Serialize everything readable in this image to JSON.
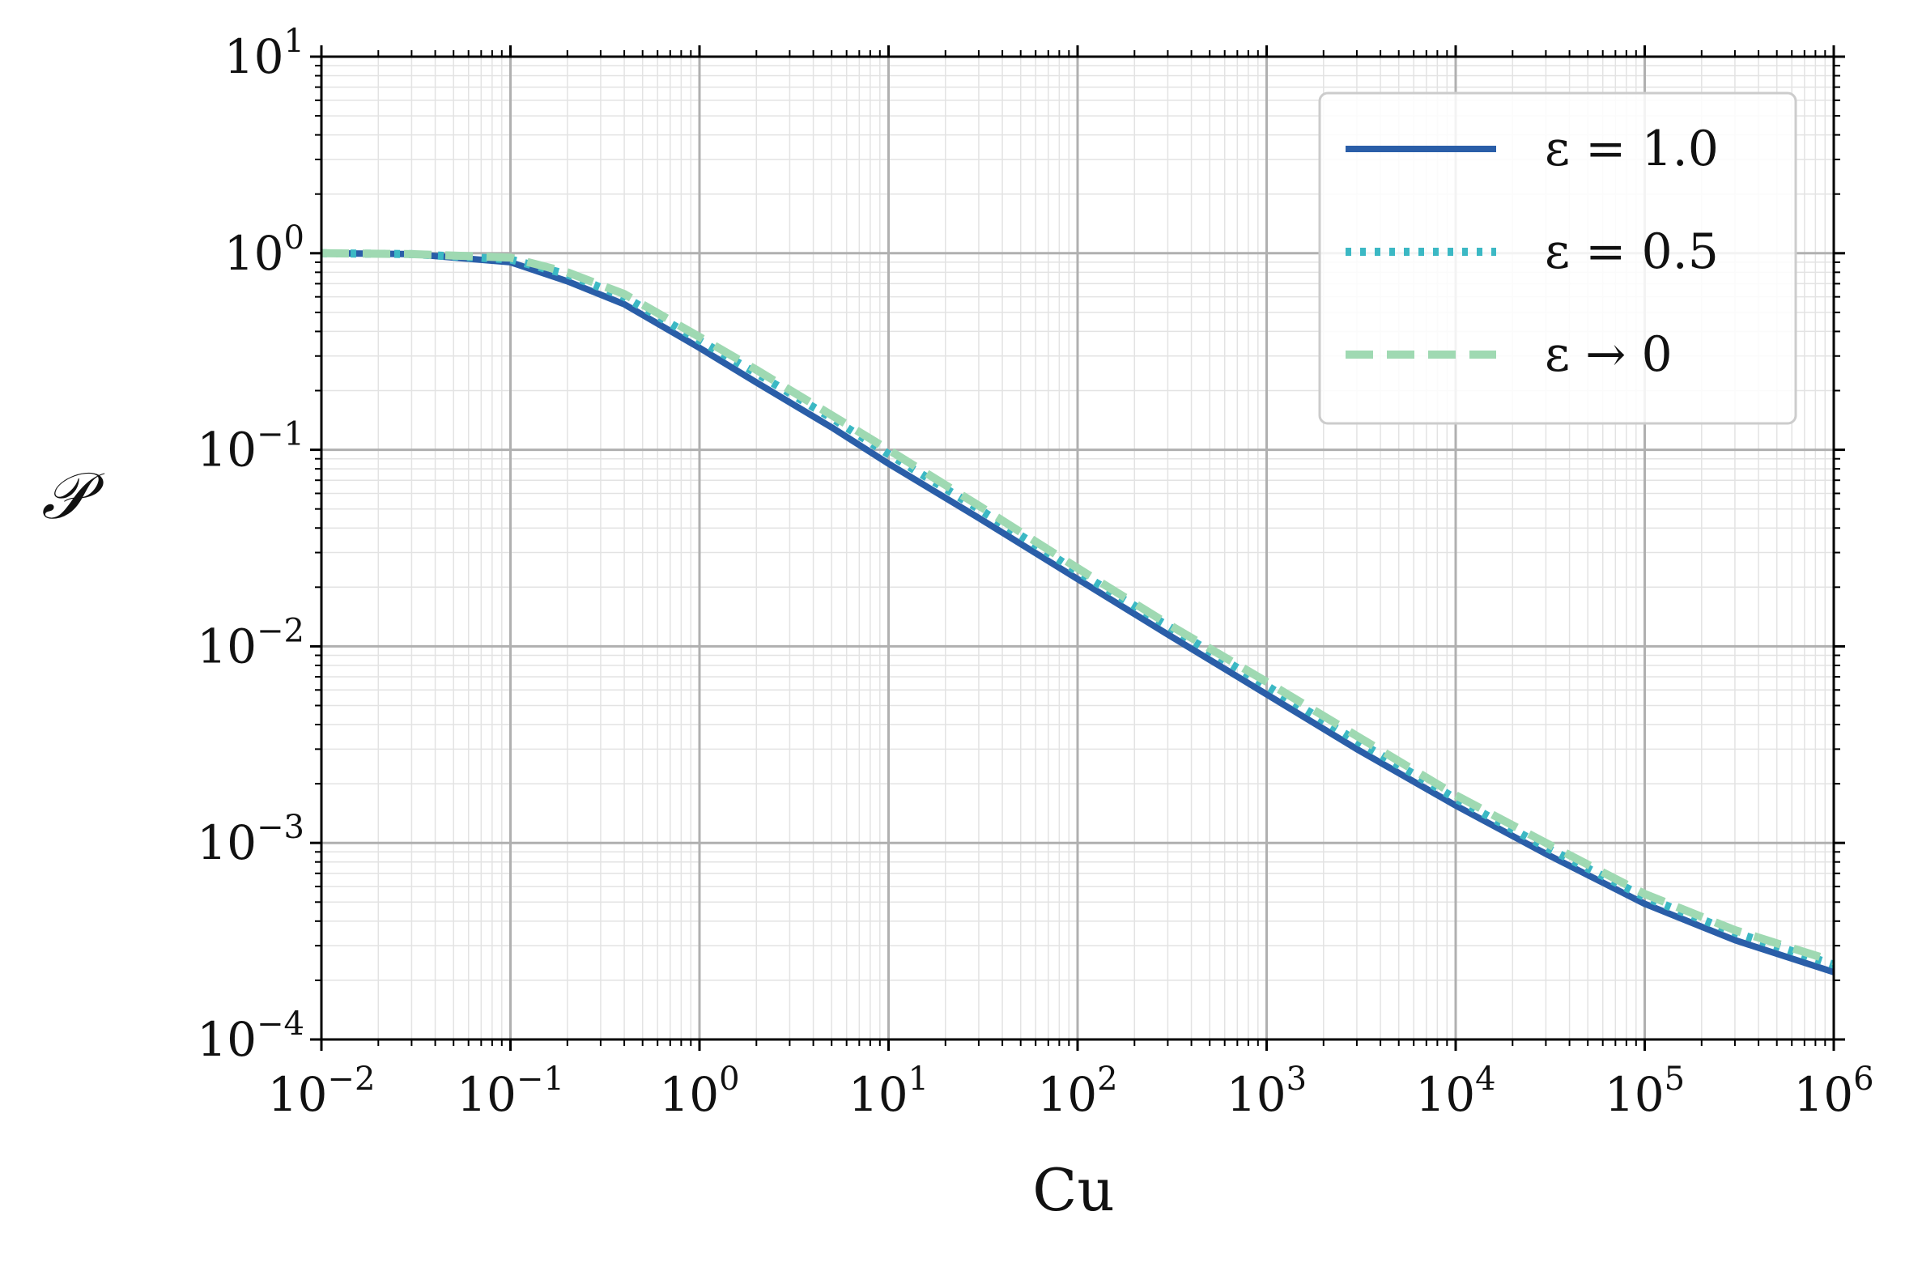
{
  "chart_data": {
    "type": "line",
    "xscale": "log",
    "yscale": "log",
    "xlim": [
      0.01,
      1000000
    ],
    "ylim": [
      0.0001,
      10
    ],
    "xlabel": "Cu",
    "ylabel": "𝒫",
    "grid": true,
    "minor_grid": true,
    "legend_position": "top-right",
    "x_ticks": [
      {
        "base": "10",
        "exp": "−2"
      },
      {
        "base": "10",
        "exp": "−1"
      },
      {
        "base": "10",
        "exp": "0"
      },
      {
        "base": "10",
        "exp": "1"
      },
      {
        "base": "10",
        "exp": "2"
      },
      {
        "base": "10",
        "exp": "3"
      },
      {
        "base": "10",
        "exp": "4"
      },
      {
        "base": "10",
        "exp": "5"
      },
      {
        "base": "10",
        "exp": "6"
      }
    ],
    "y_ticks": [
      {
        "base": "10",
        "exp": "−4"
      },
      {
        "base": "10",
        "exp": "−3"
      },
      {
        "base": "10",
        "exp": "−2"
      },
      {
        "base": "10",
        "exp": "−1"
      },
      {
        "base": "10",
        "exp": "0"
      },
      {
        "base": "10",
        "exp": "1"
      }
    ],
    "series": [
      {
        "name": "ε = 1.0",
        "color": "#2a5ea8",
        "style": "solid",
        "x": [
          0.01,
          0.03,
          0.1,
          0.2,
          0.4,
          1,
          2,
          5,
          10,
          30,
          100,
          300,
          1000,
          3000,
          10000,
          30000,
          100000,
          300000,
          1000000
        ],
        "y": [
          1.0,
          0.99,
          0.9,
          0.72,
          0.55,
          0.33,
          0.22,
          0.13,
          0.085,
          0.045,
          0.022,
          0.0115,
          0.0057,
          0.003,
          0.00155,
          0.00088,
          0.00049,
          0.00032,
          0.00022
        ]
      },
      {
        "name": "ε = 0.5",
        "color": "#3bb8c4",
        "style": "dotted",
        "x": [
          0.01,
          0.03,
          0.1,
          0.2,
          0.4,
          1,
          2,
          5,
          10,
          30,
          100,
          300,
          1000,
          3000,
          10000,
          30000,
          100000,
          300000,
          1000000
        ],
        "y": [
          1.0,
          0.99,
          0.93,
          0.78,
          0.6,
          0.36,
          0.245,
          0.145,
          0.095,
          0.05,
          0.024,
          0.0127,
          0.0063,
          0.0033,
          0.00168,
          0.00095,
          0.00053,
          0.00035,
          0.00024
        ]
      },
      {
        "name": "ε → 0",
        "color": "#9fd9b2",
        "style": "dashed",
        "x": [
          0.01,
          0.03,
          0.1,
          0.2,
          0.4,
          1,
          2,
          5,
          10,
          30,
          100,
          300,
          1000,
          3000,
          10000,
          30000,
          100000,
          300000,
          1000000
        ],
        "y": [
          1.0,
          0.99,
          0.95,
          0.8,
          0.62,
          0.375,
          0.255,
          0.15,
          0.1,
          0.052,
          0.025,
          0.013,
          0.0066,
          0.0035,
          0.00175,
          0.001,
          0.00055,
          0.00036,
          0.00025
        ]
      }
    ]
  }
}
